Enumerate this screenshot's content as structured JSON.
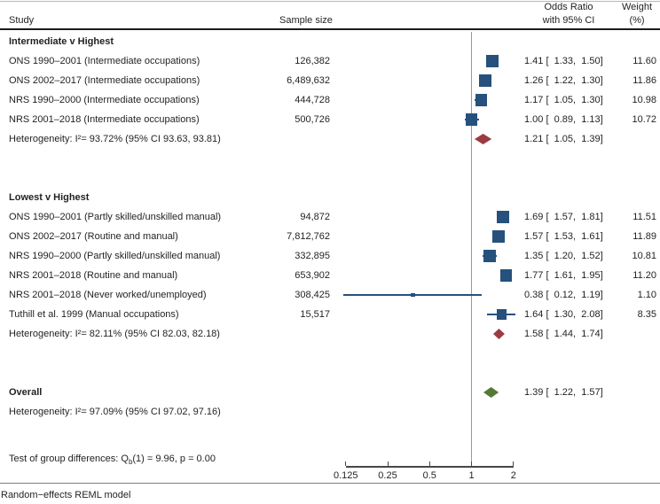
{
  "chart_data": {
    "type": "forest",
    "columns": {
      "study": "Study",
      "sample_size": "Sample size",
      "or_line1": "Odds Ratio",
      "or_line2": "with 95% CI",
      "weight_line1": "Weight",
      "weight_line2": "(%)"
    },
    "x_axis": {
      "scale": "log2",
      "tick_labels": [
        "0.125",
        "0.25",
        "0.5",
        "1",
        "2"
      ],
      "tick_values": [
        0.125,
        0.25,
        0.5,
        1,
        2
      ],
      "reference_value": 1
    },
    "colors": {
      "marker_blue": "#25517C",
      "group_diamond": "#9C3B42",
      "overall_diamond": "#547A35",
      "reference_line": "#989898"
    },
    "groups": [
      {
        "label": "Intermediate v Highest",
        "rows": [
          {
            "study": "ONS 1990–2001 (Intermediate occupations)",
            "sample_size": "126,382",
            "or": 1.41,
            "lo": 1.33,
            "hi": 1.5,
            "or_label": "1.41 [  1.33,  1.50]",
            "weight": "11.60"
          },
          {
            "study": "ONS 2002–2017 (Intermediate occupations)",
            "sample_size": "6,489,632",
            "or": 1.26,
            "lo": 1.22,
            "hi": 1.3,
            "or_label": "1.26 [  1.22,  1.30]",
            "weight": "11.86"
          },
          {
            "study": "NRS 1990–2000 (Intermediate occupations)",
            "sample_size": "444,728",
            "or": 1.17,
            "lo": 1.05,
            "hi": 1.3,
            "or_label": "1.17 [  1.05,  1.30]",
            "weight": "10.98"
          },
          {
            "study": "NRS 2001–2018 (Intermediate occupations)",
            "sample_size": "500,726",
            "or": 1.0,
            "lo": 0.89,
            "hi": 1.13,
            "or_label": "1.00 [  0.89,  1.13]",
            "weight": "10.72"
          }
        ],
        "summary": {
          "heterogeneity": "Heterogeneity: I²= 93.72% (95% CI 93.63, 93.81)",
          "or": 1.21,
          "lo": 1.05,
          "hi": 1.39,
          "or_label": "1.21 [  1.05,  1.39]"
        }
      },
      {
        "label": "Lowest v Highest",
        "rows": [
          {
            "study": "ONS 1990–2001 (Partly skilled/unskilled manual)",
            "sample_size": "94,872",
            "or": 1.69,
            "lo": 1.57,
            "hi": 1.81,
            "or_label": "1.69 [  1.57,  1.81]",
            "weight": "11.51"
          },
          {
            "study": "ONS 2002–2017 (Routine and manual)",
            "sample_size": "7,812,762",
            "or": 1.57,
            "lo": 1.53,
            "hi": 1.61,
            "or_label": "1.57 [  1.53,  1.61]",
            "weight": "11.89"
          },
          {
            "study": "NRS 1990–2000 (Partly skilled/unskilled manual)",
            "sample_size": "332,895",
            "or": 1.35,
            "lo": 1.2,
            "hi": 1.52,
            "or_label": "1.35 [  1.20,  1.52]",
            "weight": "10.81"
          },
          {
            "study": "NRS 2001–2018 (Routine and manual)",
            "sample_size": "653,902",
            "or": 1.77,
            "lo": 1.61,
            "hi": 1.95,
            "or_label": "1.77 [  1.61,  1.95]",
            "weight": "11.20"
          },
          {
            "study": "NRS 2001–2018 (Never worked/unemployed)",
            "sample_size": "308,425",
            "or": 0.38,
            "lo": 0.12,
            "hi": 1.19,
            "or_label": "0.38 [  0.12,  1.19]",
            "weight": "1.10"
          },
          {
            "study": "Tuthill et al. 1999 (Manual occupations)",
            "sample_size": "15,517",
            "or": 1.64,
            "lo": 1.3,
            "hi": 2.08,
            "or_label": "1.64 [  1.30,  2.08]",
            "weight": "8.35"
          }
        ],
        "summary": {
          "heterogeneity": "Heterogeneity: I²= 82.11% (95% CI 82.03, 82.18)",
          "or": 1.58,
          "lo": 1.44,
          "hi": 1.74,
          "or_label": "1.58 [  1.44,  1.74]"
        }
      }
    ],
    "overall": {
      "label": "Overall",
      "or": 1.39,
      "lo": 1.22,
      "hi": 1.57,
      "or_label": "1.39 [  1.22,  1.57]",
      "heterogeneity": "Heterogeneity: I²= 97.09% (95% CI 97.02, 97.16)"
    },
    "test": {
      "prefix": "Test of group differences: Q",
      "sub": "b",
      "suffix": "(1) = 9.96, p = 0.00"
    },
    "footnote": "Random−effects REML model"
  }
}
